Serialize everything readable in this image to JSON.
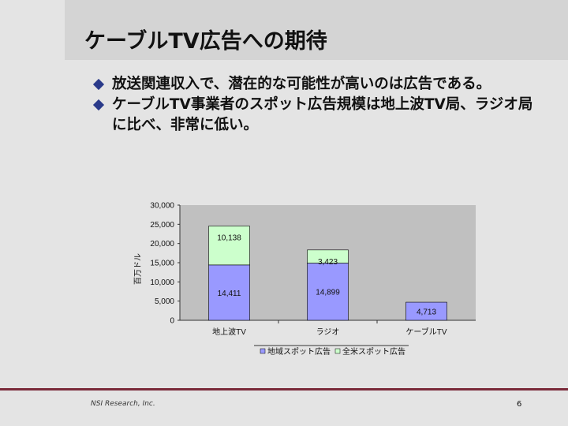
{
  "slide": {
    "title": "ケーブルTV広告への期待",
    "bullets": [
      "放送関連収入で、潜在的な可能性が高いのは広告である。",
      "ケーブルTV事業者のスポット広告規模は地上波TV局、ラジオ局に比べ、非常に低い。"
    ],
    "footer_left": "NSI Research, Inc.",
    "page_number": "6"
  },
  "colors": {
    "local_spot": "#9999ff",
    "national_spot": "#ccffcc",
    "plot_bg": "#c0c0c0",
    "footer_line": "#7a2a3a",
    "bullet": "#2a3a8a"
  },
  "chart_data": {
    "type": "bar",
    "stacked": true,
    "ylabel": "百万ドル",
    "ylim": [
      0,
      30000
    ],
    "yticks": [
      "0",
      "5,000",
      "10,000",
      "15,000",
      "20,000",
      "25,000",
      "30,000"
    ],
    "categories": [
      "地上波TV",
      "ラジオ",
      "ケーブルTV"
    ],
    "series": [
      {
        "name": "地域スポット広告",
        "values": [
          14411,
          14899,
          4713
        ],
        "labels": [
          "14,411",
          "14,899",
          "4,713"
        ]
      },
      {
        "name": "全米スポット広告",
        "values": [
          10138,
          3423,
          0
        ],
        "labels": [
          "10,138",
          "3,423",
          ""
        ]
      }
    ],
    "legend_position": "bottom",
    "grid": false
  }
}
